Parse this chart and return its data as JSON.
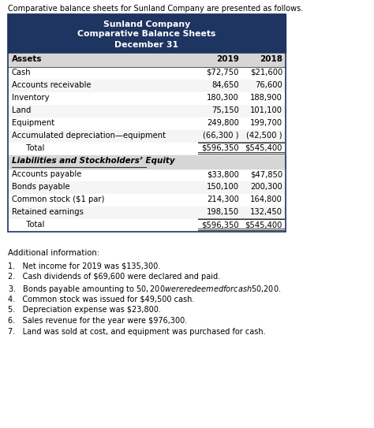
{
  "intro_text": "Comparative balance sheets for Sunland Company are presented as follows.",
  "header_line1": "Sunland Company",
  "header_line2": "Comparative Balance Sheets",
  "header_line3": "December 31",
  "header_bg": "#1e3461",
  "header_text_color": "#ffffff",
  "col_header_bg": "#e0e0e0",
  "col1_header": "Assets",
  "col2_header": "2019",
  "col3_header": "2018",
  "assets_rows": [
    [
      "Cash",
      "$72,750",
      "$21,600"
    ],
    [
      "Accounts receivable",
      "84,650",
      "76,600"
    ],
    [
      "Inventory",
      "180,300",
      "188,900"
    ],
    [
      "Land",
      "75,150",
      "101,100"
    ],
    [
      "Equipment",
      "249,800",
      "199,700"
    ],
    [
      "Accumulated depreciation—equipment",
      "(66,300 )",
      "(42,500 )"
    ],
    [
      "  Total",
      "$596,350",
      "$545,400"
    ]
  ],
  "liabilities_header": "Liabilities and Stockholders’ Equity",
  "liabilities_rows": [
    [
      "Accounts payable",
      "$33,800",
      "$47,850"
    ],
    [
      "Bonds payable",
      "150,100",
      "200,300"
    ],
    [
      "Common stock ($1 par)",
      "214,300",
      "164,800"
    ],
    [
      "Retained earnings",
      "198,150",
      "132,450"
    ],
    [
      "  Total",
      "$596,350",
      "$545,400"
    ]
  ],
  "additional_header": "Additional information:",
  "additional_items": [
    "1.   Net income for 2019 was $135,300.",
    "2.   Cash dividends of $69,600 were declared and paid.",
    "3.   Bonds payable amounting to $50,200 were redeemed for cash $50,200.",
    "4.   Common stock was issued for $49,500 cash.",
    "5.   Depreciation expense was $23,800.",
    "6.   Sales revenue for the year were $976,300.",
    "7.   Land was sold at cost, and equipment was purchased for cash."
  ],
  "bg_color": "#ffffff",
  "table_border_color": "#1e3461",
  "row_normal_color": "#ffffff",
  "row_alt_color": "#f0f0f0"
}
